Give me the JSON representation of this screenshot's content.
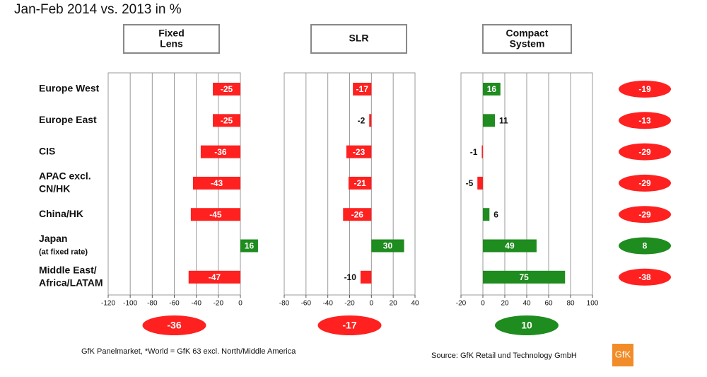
{
  "title": "Jan-Feb 2014 vs. 2013 in %",
  "rows": [
    [
      "Europe West"
    ],
    [
      "Europe East"
    ],
    [
      "CIS"
    ],
    [
      "APAC excl.",
      "CN/HK"
    ],
    [
      "China/HK"
    ],
    [
      "Japan",
      "(at fixed rate)"
    ],
    [
      "Middle East/",
      "Africa/LATAM"
    ]
  ],
  "chart_data": [
    {
      "type": "bar",
      "title": "Fixed Lens",
      "values": [
        -25,
        -25,
        -36,
        -43,
        -45,
        16,
        -47
      ],
      "xlim": [
        -120,
        0
      ],
      "xticks": [
        -120,
        -100,
        -80,
        -60,
        -40,
        -20,
        0
      ],
      "total": -36,
      "grid": true,
      "positive_color": "#1e8c1e",
      "negative_color": "#ff2020"
    },
    {
      "type": "bar",
      "title": "SLR",
      "values": [
        -17,
        -2,
        -23,
        -21,
        -26,
        30,
        -10
      ],
      "xlim": [
        -80,
        40
      ],
      "xticks": [
        -80,
        -60,
        -40,
        -20,
        0,
        20,
        40
      ],
      "total": -17,
      "grid": true,
      "positive_color": "#1e8c1e",
      "negative_color": "#ff2020"
    },
    {
      "type": "bar",
      "title": "Compact System",
      "values": [
        16,
        11,
        -1,
        -5,
        6,
        49,
        75
      ],
      "xlim": [
        -20,
        100
      ],
      "xticks": [
        -20,
        0,
        20,
        40,
        60,
        80,
        100
      ],
      "total": 10,
      "grid": true,
      "positive_color": "#1e8c1e",
      "negative_color": "#ff2020"
    }
  ],
  "region_totals": [
    -19,
    -13,
    -29,
    -29,
    -29,
    8,
    -38
  ],
  "footnote": "GfK Panelmarket, *World = GfK 63 excl. North/Middle America",
  "source": "Source: GfK Retail und Technology GmbH",
  "logo": "GfK"
}
